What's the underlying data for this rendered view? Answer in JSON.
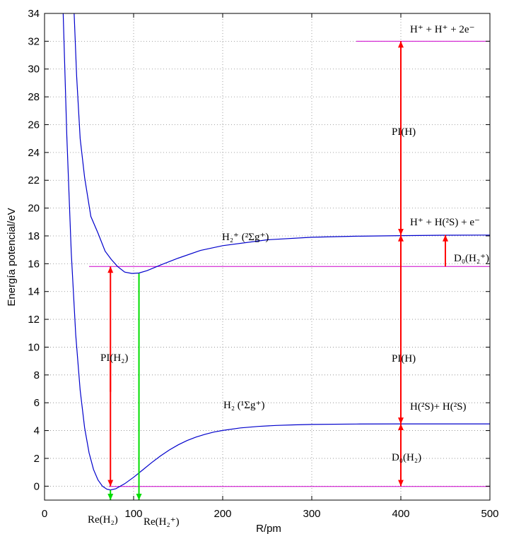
{
  "chart_data": {
    "type": "line",
    "title": "",
    "xlabel": "R/pm",
    "ylabel": "Energía potencial/eV",
    "xlim": [
      0,
      500
    ],
    "ylim": [
      -1,
      34
    ],
    "grid": true,
    "x_ticks": [
      "0",
      "100",
      "200",
      "300",
      "400",
      "500"
    ],
    "y_ticks": [
      "0",
      "2",
      "4",
      "6",
      "8",
      "10",
      "12",
      "14",
      "16",
      "18",
      "20",
      "22",
      "24",
      "26",
      "28",
      "30",
      "32",
      "34"
    ],
    "colors": {
      "curve": "#0000cc",
      "level": "#cc00cc",
      "arrow": "#ff0000",
      "marker": "#00dd00"
    },
    "series": [
      {
        "name": "H2 (1Σg+)",
        "x": [
          20,
          25,
          30,
          35,
          40,
          45,
          50,
          55,
          60,
          65,
          70,
          74,
          80,
          90,
          100,
          110,
          120,
          130,
          140,
          150,
          160,
          170,
          180,
          190,
          200,
          220,
          240,
          260,
          280,
          300,
          350,
          400,
          450,
          500
        ],
        "y": [
          36,
          25.2,
          16.8,
          10.9,
          6.9,
          4.2,
          2.4,
          1.2,
          0.45,
          0.0,
          -0.22,
          -0.27,
          -0.18,
          0.18,
          0.64,
          1.16,
          1.68,
          2.17,
          2.6,
          2.97,
          3.28,
          3.53,
          3.73,
          3.89,
          4.01,
          4.19,
          4.3,
          4.37,
          4.41,
          4.44,
          4.47,
          4.48,
          4.48,
          4.48
        ]
      },
      {
        "name": "H2+ (2Σg+)",
        "x": [
          32,
          36,
          40,
          45,
          52,
          60,
          68,
          75,
          82,
          90,
          98,
          106,
          115,
          130,
          150,
          175,
          200,
          250,
          300,
          350,
          400,
          450,
          500
        ],
        "y": [
          36,
          29.5,
          25.0,
          22.2,
          19.4,
          18.2,
          16.9,
          16.3,
          15.8,
          15.4,
          15.3,
          15.33,
          15.5,
          15.9,
          16.4,
          16.95,
          17.3,
          17.72,
          17.9,
          17.98,
          18.02,
          18.05,
          18.06
        ]
      }
    ],
    "levels": [
      {
        "name": "H+ + H+ + 2e− limit",
        "y": 32.0,
        "x_from": 350,
        "x_to": 500
      },
      {
        "name": "H2+ dissociation threshold",
        "y": 15.8,
        "x_from": 50,
        "x_to": 500
      },
      {
        "name": "H2 ground level",
        "y": -0.02,
        "x_from": 72,
        "x_to": 500
      }
    ],
    "arrows": [
      {
        "name": "PI(H2)",
        "x": 74,
        "y_from": 0.0,
        "y_to": 15.8,
        "color": "red"
      },
      {
        "name": "Re(H2+) marker",
        "x": 106,
        "y_from": 15.3,
        "y_to": -1.0,
        "color": "green"
      },
      {
        "name": "Re(H2) marker",
        "x": 74,
        "y_from": -0.27,
        "y_to": -1.0,
        "color": "green"
      },
      {
        "name": "D0(H2)",
        "x": 400,
        "y_from": 0.0,
        "y_to": 4.48,
        "color": "red"
      },
      {
        "name": "PI(H) lower",
        "x": 400,
        "y_from": 4.48,
        "y_to": 18.06,
        "color": "red"
      },
      {
        "name": "PI(H) upper",
        "x": 400,
        "y_from": 18.06,
        "y_to": 32.0,
        "color": "red"
      },
      {
        "name": "D0(H2+)",
        "x": 450,
        "y_from": 15.8,
        "y_to": 18.06,
        "color": "red"
      }
    ],
    "annotations": {
      "h_plus_h_plus": "H⁺ + H⁺ + 2e⁻",
      "pi_h_upper": "PI(H)",
      "h_plus_h2s": "H⁺ + H(²S) + e⁻",
      "h2plus_state": "H₂⁺ (²Σg⁺)",
      "d0_h2plus": "D₀(H₂⁺)",
      "pi_h2": "PI(H₂)",
      "pi_h_lower": "PI(H)",
      "h2_state": "H₂ (¹Σg⁺)",
      "h2s_h2s": "H(²S)+ H(²S)",
      "d0_h2": "D₀(H₂)",
      "re_h2": "Re(H₂)",
      "re_h2plus": "Re(H₂⁺)"
    }
  }
}
